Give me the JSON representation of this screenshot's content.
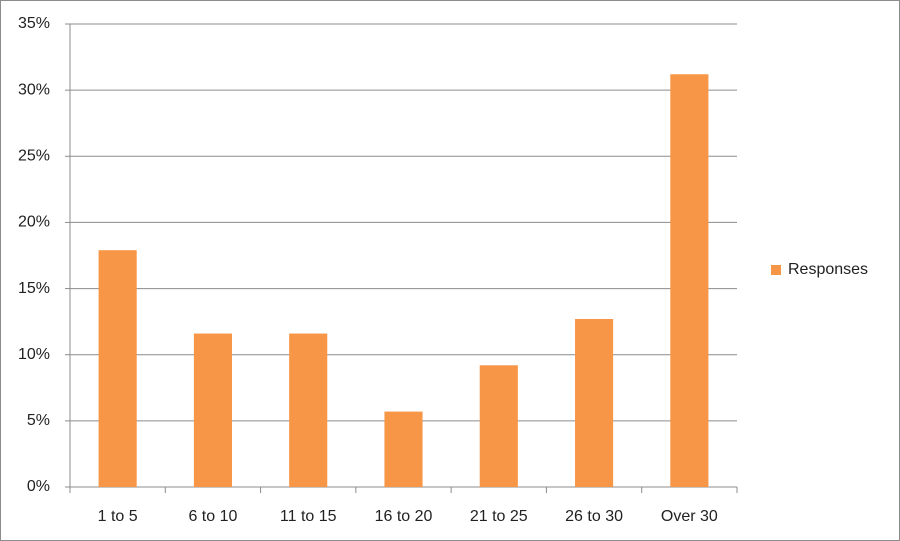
{
  "chart_data": {
    "type": "bar",
    "categories": [
      "1 to 5",
      "6 to 10",
      "11 to 15",
      "16 to 20",
      "21 to 25",
      "26 to 30",
      "Over 30"
    ],
    "series": [
      {
        "name": "Responses",
        "color": "#f79646",
        "values": [
          17.9,
          11.6,
          11.6,
          5.7,
          9.2,
          12.7,
          31.2
        ]
      }
    ],
    "ylim": [
      0,
      35
    ],
    "yticks": [
      {
        "value": 0,
        "label": "0%"
      },
      {
        "value": 5,
        "label": "5%"
      },
      {
        "value": 10,
        "label": "10%"
      },
      {
        "value": 15,
        "label": "15%"
      },
      {
        "value": 20,
        "label": "20%"
      },
      {
        "value": 25,
        "label": "25%"
      },
      {
        "value": 30,
        "label": "30%"
      },
      {
        "value": 35,
        "label": "35%"
      }
    ],
    "grid": true,
    "legend": "right"
  }
}
